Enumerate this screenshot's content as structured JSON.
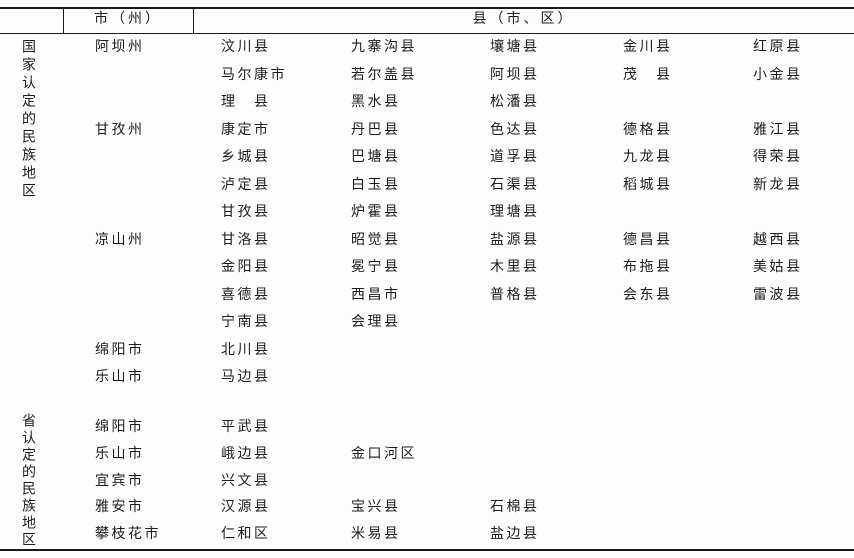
{
  "page": {
    "background": "#fdfdfc",
    "text_color": "#1d1d1d",
    "line_color": "#1a1a1a"
  },
  "header": {
    "prefecture_col": "市（州）",
    "county_col": "县（市、区）"
  },
  "sections": [
    {
      "label": "国家认定的民族地区",
      "groups": [
        {
          "prefecture": "阿坝州",
          "rows": [
            [
              "汶川县",
              "九寨沟县",
              "壤塘县",
              "金川县",
              "红原县"
            ],
            [
              "马尔康市",
              "若尔盖县",
              "阿坝县",
              "茂　县",
              "小金县"
            ],
            [
              "理　县",
              "黑水县",
              "松潘县"
            ]
          ]
        },
        {
          "prefecture": "甘孜州",
          "rows": [
            [
              "康定市",
              "丹巴县",
              "色达县",
              "德格县",
              "雅江县"
            ],
            [
              "乡城县",
              "巴塘县",
              "道孚县",
              "九龙县",
              "得荣县"
            ],
            [
              "泸定县",
              "白玉县",
              "石渠县",
              "稻城县",
              "新龙县"
            ],
            [
              "甘孜县",
              "炉霍县",
              "理塘县"
            ]
          ]
        },
        {
          "prefecture": "凉山州",
          "rows": [
            [
              "甘洛县",
              "昭觉县",
              "盐源县",
              "德昌县",
              "越西县"
            ],
            [
              "金阳县",
              "冕宁县",
              "木里县",
              "布拖县",
              "美姑县"
            ],
            [
              "喜德县",
              "西昌市",
              "普格县",
              "会东县",
              "雷波县"
            ],
            [
              "宁南县",
              "会理县"
            ]
          ]
        },
        {
          "prefecture": "绵阳市",
          "rows": [
            [
              "北川县"
            ]
          ]
        },
        {
          "prefecture": "乐山市",
          "rows": [
            [
              "马边县"
            ]
          ]
        }
      ]
    },
    {
      "label": "省认定的民族地区",
      "groups": [
        {
          "prefecture": "绵阳市",
          "rows": [
            [
              "平武县"
            ]
          ]
        },
        {
          "prefecture": "乐山市",
          "rows": [
            [
              "峨边县",
              "金口河区"
            ]
          ]
        },
        {
          "prefecture": "宜宾市",
          "rows": [
            [
              "兴文县"
            ]
          ]
        },
        {
          "prefecture": "雅安市",
          "rows": [
            [
              "汉源县",
              "宝兴县",
              "石棉县"
            ]
          ]
        },
        {
          "prefecture": "攀枝花市",
          "rows": [
            [
              "仁和区",
              "米易县",
              "盐边县"
            ]
          ]
        }
      ]
    }
  ]
}
